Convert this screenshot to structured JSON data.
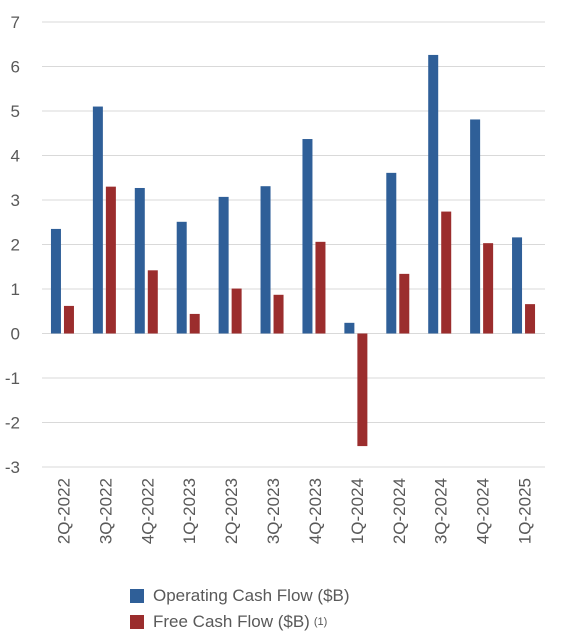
{
  "chart_data": {
    "type": "bar",
    "title": "",
    "xlabel": "",
    "ylabel": "",
    "ylim": [
      -3,
      7
    ],
    "yticks": [
      7,
      6,
      5,
      4,
      3,
      2,
      1,
      0,
      -1,
      -2,
      -3
    ],
    "grid": true,
    "legend_position": "bottom",
    "categories": [
      "2Q-2022",
      "3Q-2022",
      "4Q-2022",
      "1Q-2023",
      "2Q-2023",
      "3Q-2023",
      "4Q-2023",
      "1Q-2024",
      "2Q-2024",
      "3Q-2024",
      "4Q-2024",
      "1Q-2025"
    ],
    "series": [
      {
        "name": "Operating Cash Flow ($B)",
        "color": "#2f5f98",
        "values": [
          2.35,
          5.1,
          3.27,
          2.51,
          3.07,
          3.31,
          4.37,
          0.24,
          3.61,
          6.26,
          4.81,
          2.16
        ]
      },
      {
        "name": "Free Cash Flow ($B)",
        "footnote": "(1)",
        "color": "#9b2d2d",
        "values": [
          0.62,
          3.3,
          1.42,
          0.44,
          1.01,
          0.87,
          2.06,
          -2.53,
          1.34,
          2.74,
          2.03,
          0.66
        ]
      }
    ]
  }
}
